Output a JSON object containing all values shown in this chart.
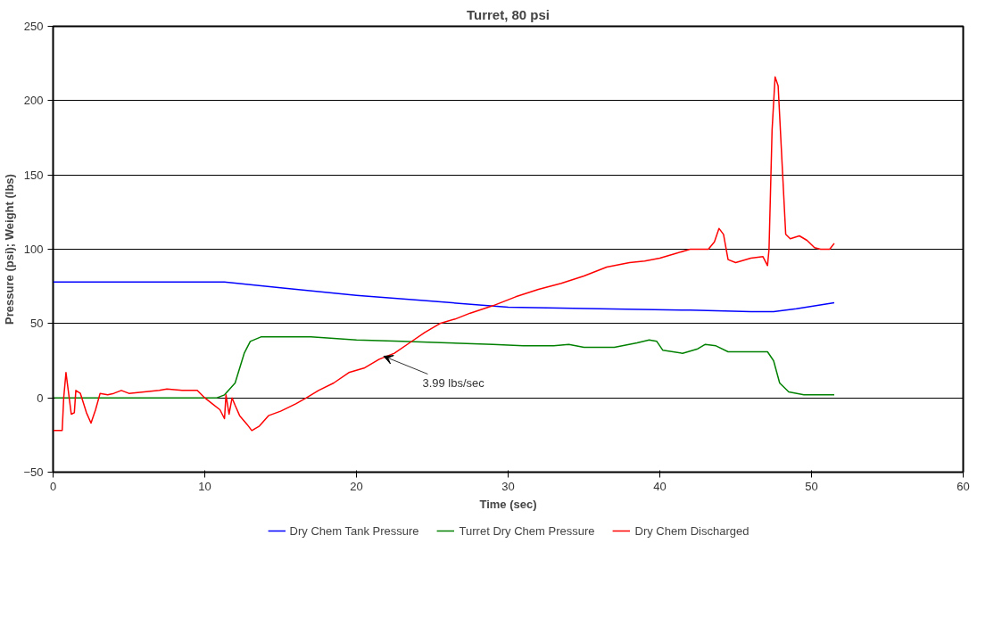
{
  "chart_data": {
    "type": "line",
    "title": "Turret, 80 psi",
    "xlabel": "Time (sec)",
    "ylabel": "Pressure (psi); Weight (lbs)",
    "xlim": [
      0,
      60
    ],
    "ylim": [
      -50,
      250
    ],
    "xticks": [
      0,
      10,
      20,
      30,
      40,
      50,
      60
    ],
    "yticks": [
      -50,
      0,
      50,
      100,
      150,
      200,
      250
    ],
    "grid": "y",
    "legend": "bottom",
    "marker": "none",
    "line_style": "solid",
    "annotations": [
      {
        "text": "3.99 lbs/sec",
        "x": 21.8,
        "y": 28
      }
    ],
    "series": [
      {
        "name": "Dry Chem Tank Pressure",
        "color": "#0000ff",
        "x": [
          0,
          11.3,
          15,
          20,
          25,
          30,
          36,
          42,
          46,
          47.5,
          49,
          51.5
        ],
        "values": [
          78,
          78,
          74,
          69,
          65,
          61,
          60,
          59,
          58,
          58,
          60,
          64
        ]
      },
      {
        "name": "Turret Dry Chem Pressure",
        "color": "#008000",
        "x": [
          0,
          10.8,
          11.3,
          12,
          12.6,
          13,
          13.7,
          17,
          20,
          23,
          26,
          29,
          31,
          33,
          34,
          35,
          37,
          38.5,
          39.3,
          39.8,
          40.2,
          41.5,
          42.5,
          43,
          43.7,
          44.5,
          46.5,
          47.1,
          47.5,
          47.9,
          48.5,
          49.5,
          51.5
        ],
        "values": [
          0,
          0,
          2,
          10,
          30,
          38,
          41,
          41,
          39,
          38,
          37,
          36,
          35,
          35,
          36,
          34,
          34,
          37,
          39,
          38,
          32,
          30,
          33,
          36,
          35,
          31,
          31,
          31,
          25,
          10,
          4,
          2,
          2
        ]
      },
      {
        "name": "Dry Chem Discharged",
        "color": "#ff0000",
        "x": [
          0,
          0.6,
          0.7,
          0.85,
          1.0,
          1.2,
          1.4,
          1.5,
          1.8,
          2.2,
          2.5,
          2.8,
          3.1,
          3.6,
          4,
          4.5,
          5,
          6,
          7,
          7.5,
          8.5,
          9.5,
          10,
          10.5,
          11,
          11.3,
          11.4,
          11.6,
          11.8,
          12,
          12.3,
          12.8,
          13.1,
          13.6,
          14.2,
          15,
          16,
          16.7,
          17.5,
          18.5,
          19.5,
          20.5,
          21.5,
          22.5,
          23.5,
          24.5,
          25.5,
          26.5,
          27.5,
          29,
          30.5,
          32,
          33.5,
          35,
          36.5,
          38,
          39,
          40,
          41,
          42,
          43.2,
          43.6,
          43.9,
          44.2,
          44.5,
          45,
          46,
          46.8,
          47.1,
          47.2,
          47.4,
          47.6,
          47.8,
          48.1,
          48.3,
          48.6,
          49.2,
          49.7,
          50.2,
          50.6,
          51.2,
          51.5
        ],
        "values": [
          -22,
          -22,
          0,
          17,
          5,
          -11,
          -10,
          5,
          3,
          -10,
          -17,
          -8,
          3,
          2,
          3,
          5,
          3,
          4,
          5,
          6,
          5,
          5,
          0,
          -4,
          -8,
          -14,
          2,
          -11,
          0,
          -5,
          -12,
          -18,
          -22,
          -19,
          -12,
          -9,
          -4,
          0,
          5,
          10,
          17,
          20,
          26,
          30,
          37,
          44,
          50,
          53,
          57,
          62,
          68,
          73,
          77,
          82,
          88,
          91,
          92,
          94,
          97,
          100,
          100,
          105,
          114,
          110,
          93,
          91,
          94,
          95,
          89,
          100,
          180,
          216,
          210,
          150,
          110,
          107,
          109,
          106,
          101,
          100,
          100,
          104
        ]
      }
    ]
  }
}
